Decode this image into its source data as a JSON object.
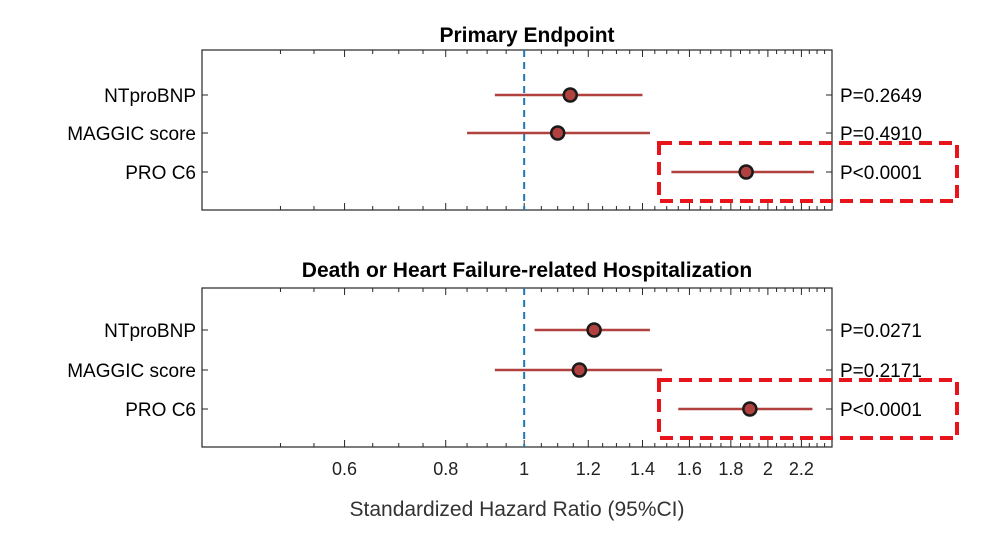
{
  "chart_data": [
    {
      "type": "forest",
      "title": "Primary Endpoint",
      "x_scale": "log",
      "xlim": [
        0.4,
        2.4
      ],
      "reference_line": 1,
      "rows": [
        {
          "label": "NTproBNP",
          "estimate": 1.14,
          "ci": [
            0.92,
            1.4
          ],
          "p": "P=0.2649",
          "highlighted": false
        },
        {
          "label": "MAGGIC score",
          "estimate": 1.1,
          "ci": [
            0.85,
            1.43
          ],
          "p": "P=0.4910",
          "highlighted": false
        },
        {
          "label": "PRO C6",
          "estimate": 1.88,
          "ci": [
            1.52,
            2.28
          ],
          "p": "P<0.0001",
          "highlighted": true
        }
      ]
    },
    {
      "type": "forest",
      "title": "Death or Heart Failure-related Hospitalization",
      "x_scale": "log",
      "xlim": [
        0.4,
        2.4
      ],
      "reference_line": 1,
      "rows": [
        {
          "label": "NTproBNP",
          "estimate": 1.22,
          "ci": [
            1.03,
            1.43
          ],
          "p": "P=0.0271",
          "highlighted": false
        },
        {
          "label": "MAGGIC score",
          "estimate": 1.17,
          "ci": [
            0.92,
            1.48
          ],
          "p": "P=0.2171",
          "highlighted": false
        },
        {
          "label": "PRO C6",
          "estimate": 1.9,
          "ci": [
            1.55,
            2.27
          ],
          "p": "P<0.0001",
          "highlighted": true
        }
      ],
      "xticks": [
        "0.6",
        "0.8",
        "1",
        "1.2",
        "1.4",
        "1.6",
        "1.8",
        "2",
        "2.2"
      ],
      "xlabel": "Standardized Hazard Ratio (95%CI)"
    }
  ],
  "colors": {
    "ci_line": "#b0413e",
    "marker_fill": "#b0413e",
    "marker_edge": "#1a1a1a",
    "reference_line": "#1f77b4",
    "highlight_box": "#e8141b",
    "axes": "#262626"
  }
}
